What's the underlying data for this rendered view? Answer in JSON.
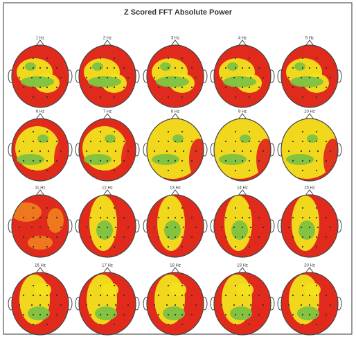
{
  "title": "Z Scored FFT Absolute Power",
  "maps": [
    {
      "label": "1 Hz"
    },
    {
      "label": "2 Hz"
    },
    {
      "label": "3 Hz"
    },
    {
      "label": "4 Hz"
    },
    {
      "label": "5 Hz"
    },
    {
      "label": "6 Hz"
    },
    {
      "label": "7 Hz"
    },
    {
      "label": "8 Hz"
    },
    {
      "label": "9 Hz"
    },
    {
      "label": "10 Hz"
    },
    {
      "label": "11 Hz"
    },
    {
      "label": "12 Hz"
    },
    {
      "label": "13 Hz"
    },
    {
      "label": "14 Hz"
    },
    {
      "label": "15 Hz"
    },
    {
      "label": "16 Hz"
    },
    {
      "label": "17 Hz"
    },
    {
      "label": "18 Hz"
    },
    {
      "label": "19 Hz"
    },
    {
      "label": "20 Hz"
    }
  ]
}
